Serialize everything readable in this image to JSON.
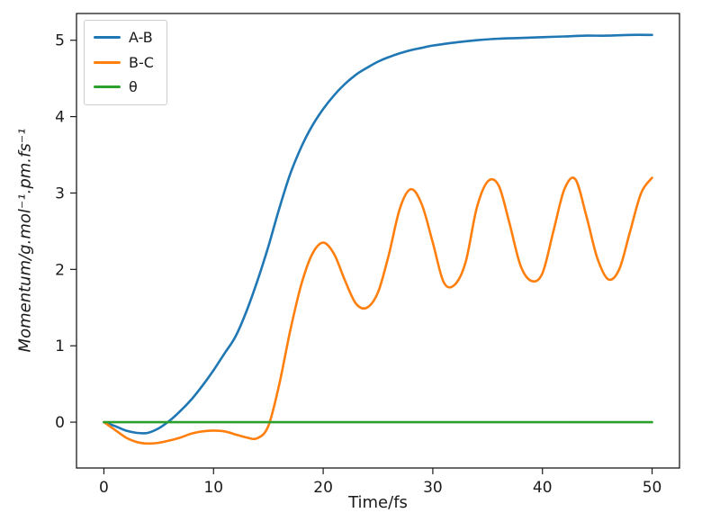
{
  "figure": {
    "background": "#ffffff",
    "spine_color": "#1a1a1a"
  },
  "chart_data": {
    "type": "line",
    "title": "",
    "xlabel": "Time/fs",
    "ylabel": "Momentum/g.mol⁻¹.pm.fs⁻¹",
    "xlim": [
      -2.5,
      52.5
    ],
    "ylim": [
      -0.6,
      5.35
    ],
    "xticks": [
      0,
      10,
      20,
      30,
      40,
      50
    ],
    "yticks": [
      0,
      1,
      2,
      3,
      4,
      5
    ],
    "grid": false,
    "legend_position": "upper-left",
    "series": [
      {
        "name": "A-B",
        "color": "#1f77b4",
        "x": [
          0,
          1,
          2,
          3,
          4,
          5,
          6,
          7,
          8,
          9,
          10,
          11,
          12,
          13,
          14,
          15,
          16,
          17,
          18,
          19,
          20,
          21,
          22,
          23,
          24,
          25,
          26,
          27,
          28,
          29,
          30,
          32,
          34,
          36,
          38,
          40,
          42,
          44,
          46,
          48,
          50
        ],
        "y": [
          0,
          -0.05,
          -0.11,
          -0.14,
          -0.14,
          -0.08,
          0.02,
          0.15,
          0.3,
          0.48,
          0.68,
          0.9,
          1.12,
          1.45,
          1.85,
          2.3,
          2.8,
          3.25,
          3.6,
          3.88,
          4.1,
          4.28,
          4.43,
          4.55,
          4.64,
          4.72,
          4.78,
          4.83,
          4.87,
          4.9,
          4.93,
          4.97,
          5.0,
          5.02,
          5.03,
          5.04,
          5.05,
          5.06,
          5.06,
          5.07,
          5.07
        ]
      },
      {
        "name": "B-C",
        "color": "#ff7f0e",
        "x": [
          0,
          1,
          2,
          3,
          4,
          5,
          6,
          7,
          8,
          9,
          10,
          11,
          12,
          13,
          14,
          15,
          16,
          17,
          18,
          19,
          20,
          21,
          22,
          23,
          24,
          25,
          26,
          27,
          28,
          29,
          30,
          31,
          32,
          33,
          34,
          35,
          36,
          37,
          38,
          39,
          40,
          41,
          42,
          43,
          44,
          45,
          46,
          47,
          48,
          49,
          50
        ],
        "y": [
          0,
          -0.1,
          -0.2,
          -0.26,
          -0.28,
          -0.27,
          -0.24,
          -0.2,
          -0.15,
          -0.12,
          -0.11,
          -0.12,
          -0.16,
          -0.2,
          -0.21,
          -0.05,
          0.5,
          1.2,
          1.8,
          2.2,
          2.35,
          2.2,
          1.85,
          1.55,
          1.5,
          1.7,
          2.2,
          2.8,
          3.05,
          2.85,
          2.35,
          1.83,
          1.8,
          2.1,
          2.8,
          3.15,
          3.1,
          2.6,
          2.05,
          1.85,
          1.95,
          2.5,
          3.05,
          3.18,
          2.7,
          2.15,
          1.87,
          2.0,
          2.5,
          3.0,
          3.2
        ]
      },
      {
        "name": "θ",
        "color": "#2ca02c",
        "x": [
          0,
          50
        ],
        "y": [
          0,
          0
        ]
      }
    ]
  }
}
